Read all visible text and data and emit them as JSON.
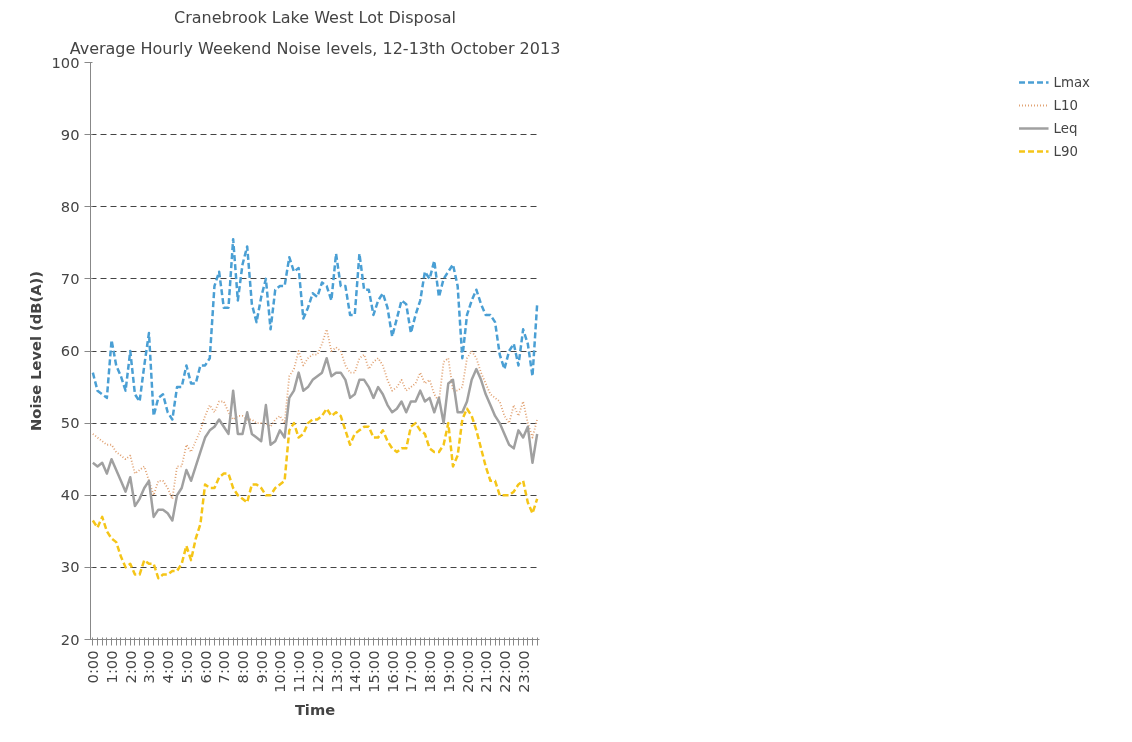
{
  "chart_data": {
    "type": "line",
    "title": "Cranebrook Lake West Lot Disposal",
    "subtitle": "Average Hourly Weekend Noise levels, 12-13th October 2013",
    "xlabel": "Time",
    "ylabel": "Noise Level (dB(A))",
    "categories": [
      "0:00",
      null,
      null,
      null,
      "1:00",
      null,
      null,
      null,
      "2:00",
      null,
      null,
      null,
      "3:00",
      null,
      null,
      null,
      "4:00",
      null,
      null,
      null,
      "5:00",
      null,
      null,
      null,
      "6:00",
      null,
      null,
      null,
      "7:00",
      null,
      null,
      null,
      "8:00",
      null,
      null,
      null,
      "9:00",
      null,
      null,
      null,
      "10:00",
      null,
      null,
      null,
      "11:00",
      null,
      null,
      null,
      "12:00",
      null,
      null,
      null,
      "13:00",
      null,
      null,
      null,
      "14:00",
      null,
      null,
      null,
      "15:00",
      null,
      null,
      null,
      "16:00",
      null,
      null,
      null,
      "17:00",
      null,
      null,
      null,
      "18:00",
      null,
      null,
      null,
      "19:00",
      null,
      null,
      null,
      "20:00",
      null,
      null,
      null,
      "21:00",
      null,
      null,
      null,
      "22:00",
      null,
      null,
      null,
      "23:00",
      null,
      null,
      null
    ],
    "series": [
      {
        "name": "Lmax",
        "color": "#4a9fd4",
        "line_style": "dashed",
        "values": [
          57,
          54.5,
          54,
          53.5,
          61.5,
          58,
          56.5,
          54.5,
          60,
          54,
          53,
          58,
          62.5,
          51,
          53.5,
          54,
          51.5,
          50.5,
          55,
          55,
          58,
          55.5,
          55.5,
          58,
          58,
          59,
          69,
          71,
          66,
          66,
          75.5,
          67,
          72,
          74.5,
          66.5,
          64,
          67.5,
          70,
          63,
          68.5,
          69,
          69,
          73,
          71,
          71.5,
          64.5,
          66,
          68,
          67.5,
          69.5,
          69,
          67,
          73.5,
          69,
          69,
          65,
          65,
          73.5,
          68.5,
          68.5,
          65,
          67,
          68,
          66,
          62,
          64.5,
          67,
          66.5,
          62.5,
          65,
          67,
          71,
          70,
          72.5,
          67.5,
          70,
          71,
          72,
          69,
          59,
          65,
          67,
          68.5,
          66.5,
          65,
          65,
          64,
          59.5,
          57.5,
          60,
          61,
          58,
          63,
          61,
          56.5,
          66.5
        ]
      },
      {
        "name": "L10",
        "color": "#e0a070",
        "line_style": "dotted",
        "values": [
          48.5,
          48,
          47.5,
          47,
          47,
          46,
          45.5,
          45,
          45.5,
          43,
          43.5,
          44,
          42,
          40,
          42,
          42,
          41,
          39.5,
          44,
          44,
          47,
          46,
          47.5,
          49,
          51,
          52.5,
          51.5,
          53,
          53,
          51.5,
          50.5,
          51,
          51,
          50.5,
          50.5,
          50,
          50,
          50,
          49.5,
          50.5,
          51,
          50,
          56.5,
          57.5,
          60,
          58,
          59,
          59.5,
          59.5,
          61,
          63,
          60,
          60.5,
          60,
          58,
          57,
          57,
          59,
          59.5,
          57.5,
          58.5,
          59,
          58,
          56,
          54.5,
          55,
          56,
          54.5,
          55,
          55.5,
          57,
          55.5,
          56,
          54,
          53,
          58.5,
          59,
          54.5,
          54.5,
          55,
          59,
          60,
          59,
          57,
          55.5,
          54,
          53.5,
          53,
          51,
          50,
          52.5,
          51,
          53,
          50,
          48,
          50.5
        ]
      },
      {
        "name": "Leq",
        "color": "#a0a0a0",
        "line_style": "solid",
        "values": [
          44.5,
          44,
          44.5,
          43,
          45,
          43.5,
          42,
          40.5,
          42.5,
          38.5,
          39.5,
          41,
          42,
          37,
          38,
          38,
          37.5,
          36.5,
          40,
          41,
          43.5,
          42,
          44,
          46,
          48,
          49,
          49.5,
          50.5,
          49.5,
          48.5,
          54.5,
          48.5,
          48.5,
          51.5,
          48.5,
          48,
          47.5,
          52.5,
          47,
          47.5,
          49,
          48,
          53.5,
          54.5,
          57,
          54.5,
          55,
          56,
          56.5,
          57,
          59,
          56.5,
          57,
          57,
          56,
          53.5,
          54,
          56,
          56,
          55,
          53.5,
          55,
          54,
          52.5,
          51.5,
          52,
          53,
          51.5,
          53,
          53,
          54.5,
          53,
          53.5,
          51.5,
          53.5,
          50,
          55.5,
          56,
          51.5,
          51.5,
          53,
          56,
          57.5,
          56,
          54,
          52.5,
          51,
          50,
          48.5,
          47,
          46.5,
          49,
          48,
          49.5,
          44.5,
          48.5
        ]
      },
      {
        "name": "L90",
        "color": "#f5c518",
        "line_style": "dashed",
        "values": [
          36.5,
          35.5,
          37,
          35,
          34,
          33.5,
          31.5,
          30,
          30.5,
          29,
          29,
          31,
          30.5,
          30.5,
          28.5,
          29,
          29,
          29.5,
          29.5,
          30.5,
          33,
          31,
          34,
          36,
          41.5,
          41,
          41,
          42.5,
          43,
          43,
          41,
          40,
          39.5,
          39,
          41.5,
          41.5,
          41,
          40,
          40,
          41,
          41.5,
          42,
          49,
          50,
          48,
          48.5,
          50,
          50.5,
          50.5,
          51,
          52,
          51,
          51.5,
          51,
          49,
          47,
          48.5,
          49,
          49.5,
          49.5,
          48,
          48,
          49,
          47.5,
          46.5,
          46,
          46.5,
          46.5,
          49.5,
          50,
          49,
          48.5,
          46.5,
          46,
          46,
          47,
          50,
          44,
          45.5,
          50.5,
          52,
          51,
          49,
          46.5,
          44,
          42,
          42,
          40,
          40,
          40,
          40.5,
          41.5,
          42,
          39,
          37.5,
          39.5
        ]
      }
    ],
    "ylim": [
      20,
      100
    ],
    "yticks": [
      20,
      30,
      40,
      50,
      60,
      70,
      80,
      90,
      100
    ],
    "grid": "y",
    "legend": "right",
    "marker": "none"
  }
}
